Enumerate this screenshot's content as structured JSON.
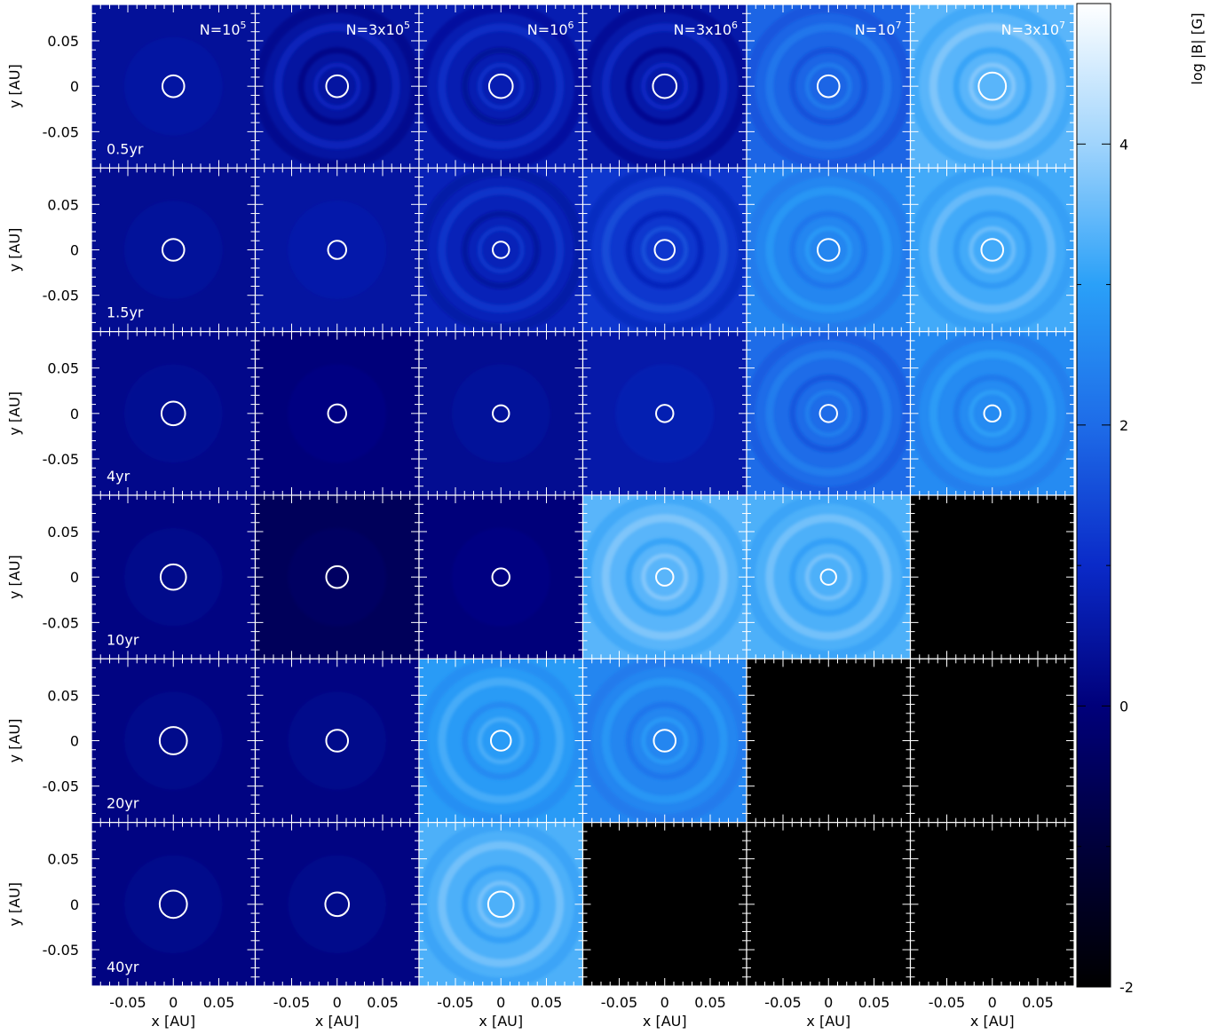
{
  "chart_data": {
    "type": "heatmap",
    "description_rows": "rows are simulation times, columns are particle resolutions",
    "columns": [
      {
        "label_base": "N=10",
        "label_exp": "5"
      },
      {
        "label_base": "N=3x10",
        "label_exp": "5"
      },
      {
        "label_base": "N=10",
        "label_exp": "6"
      },
      {
        "label_base": "N=3x10",
        "label_exp": "6"
      },
      {
        "label_base": "N=10",
        "label_exp": "7"
      },
      {
        "label_base": "N=3x10",
        "label_exp": "7"
      }
    ],
    "rows": [
      "0.5yr",
      "1.5yr",
      "4yr",
      "10yr",
      "20yr",
      "40yr"
    ],
    "xlabel": "x [AU]",
    "ylabel": "y [AU]",
    "x_ticks": [
      "-0.05",
      "0",
      "0.05"
    ],
    "y_ticks": [
      "0.05",
      "0",
      "-0.05"
    ],
    "xlim": [
      -0.09,
      0.09
    ],
    "ylim": [
      -0.09,
      0.09
    ],
    "colorbar": {
      "label": "log |B| [G]",
      "min": -2,
      "max": 5,
      "ticks": [
        "4",
        "2",
        "0",
        "-2"
      ],
      "tick_values": [
        4,
        2,
        0,
        -2
      ],
      "colors": [
        "#000000",
        "#00003a",
        "#00007a",
        "#0a2ac8",
        "#1e6ce8",
        "#2aa0f8",
        "#a0d4fc",
        "#ffffff"
      ]
    },
    "field_logB": [
      [
        0.4,
        0.5,
        0.7,
        0.6,
        1.9,
        3.4
      ],
      [
        0.3,
        0.5,
        0.8,
        1.2,
        2.5,
        3.2
      ],
      [
        0.2,
        0.0,
        0.3,
        0.6,
        2.0,
        2.6
      ],
      [
        0.1,
        -0.5,
        0.0,
        3.4,
        3.3,
        null
      ],
      [
        0.1,
        0.1,
        2.9,
        2.5,
        null,
        null
      ],
      [
        0.1,
        0.1,
        3.3,
        null,
        null,
        null
      ]
    ],
    "has_spiral": [
      [
        false,
        true,
        true,
        true,
        true,
        true
      ],
      [
        false,
        false,
        true,
        true,
        true,
        true
      ],
      [
        false,
        false,
        false,
        false,
        true,
        true
      ],
      [
        false,
        false,
        false,
        true,
        true,
        false
      ],
      [
        false,
        false,
        true,
        true,
        false,
        false
      ],
      [
        false,
        false,
        true,
        false,
        false,
        false
      ]
    ],
    "circle_radius_au": [
      [
        0.012,
        0.012,
        0.013,
        0.013,
        0.012,
        0.015
      ],
      [
        0.012,
        0.01,
        0.009,
        0.011,
        0.012,
        0.012
      ],
      [
        0.013,
        0.01,
        0.009,
        0.0095,
        0.0095,
        0.009
      ],
      [
        0.014,
        0.012,
        0.0095,
        0.0095,
        0.0085,
        null
      ],
      [
        0.015,
        0.012,
        0.011,
        0.012,
        null,
        null
      ],
      [
        0.015,
        0.013,
        0.014,
        null,
        null,
        null
      ]
    ]
  }
}
